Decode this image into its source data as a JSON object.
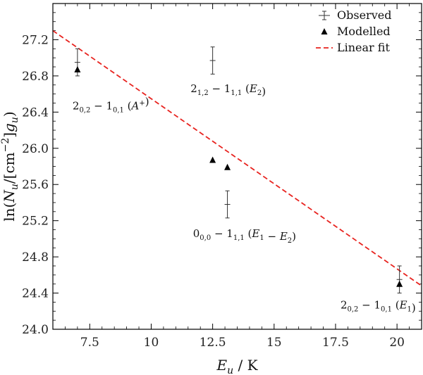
{
  "chart_data": {
    "type": "scatter",
    "xlabel": "E_u / K",
    "ylabel": "ln(N_u/[cm^-2]g_u)",
    "xlim": [
      6,
      21
    ],
    "ylim": [
      24.0,
      27.6
    ],
    "x_ticks": [
      7.5,
      10,
      12.5,
      15,
      17.5,
      20
    ],
    "x_tick_labels": [
      "7.5",
      "10",
      "12.5",
      "15",
      "17.5",
      "20"
    ],
    "y_ticks": [
      24.0,
      24.4,
      24.8,
      25.2,
      25.6,
      26.0,
      26.4,
      26.8,
      27.2
    ],
    "y_tick_labels": [
      "24.0",
      "24.4",
      "24.8",
      "25.2",
      "25.6",
      "26.0",
      "26.4",
      "26.8",
      "27.2"
    ],
    "grid": false,
    "legend_position": "top-right",
    "series": [
      {
        "name": "Observed",
        "style": "errorbar",
        "color": "#333333",
        "points": [
          {
            "x": 7.0,
            "y": 26.95,
            "yerr": 0.15
          },
          {
            "x": 12.5,
            "y": 26.97,
            "yerr": 0.15
          },
          {
            "x": 13.1,
            "y": 25.38,
            "yerr": 0.15
          },
          {
            "x": 20.1,
            "y": 24.55,
            "yerr": 0.15
          }
        ]
      },
      {
        "name": "Modelled",
        "style": "triangle",
        "color": "#000000",
        "points": [
          {
            "x": 7.0,
            "y": 26.87
          },
          {
            "x": 12.5,
            "y": 25.87
          },
          {
            "x": 13.1,
            "y": 25.79
          },
          {
            "x": 20.1,
            "y": 24.5
          }
        ]
      },
      {
        "name": "Linear fit",
        "style": "dashed-line",
        "color": "#e8231f",
        "x": [
          6.0,
          21.0
        ],
        "y": [
          27.3,
          24.48
        ]
      }
    ],
    "annotations": [
      {
        "label": "2_{0,2} − 1_{0,1} (A⁺)",
        "base": "2",
        "base_sub": "0,2",
        "mid": " − 1",
        "mid_sub": "0,1",
        "tail": " (A",
        "tail_sup": "+",
        "tail_sub": "",
        "tail_end": ")",
        "at": [
          6.8,
          26.43
        ]
      },
      {
        "label": "2_{1,2} − 1_{1,1} (E_2)",
        "base": "2",
        "base_sub": "1,2",
        "mid": " − 1",
        "mid_sub": "1,1",
        "tail": " (E",
        "tail_sup": "",
        "tail_sub": "2",
        "tail_end": ")",
        "at": [
          11.6,
          26.62
        ]
      },
      {
        "label": "0_{0,0} − 1_{1,1} (E_1 − E_2)",
        "base": "0",
        "base_sub": "0,0",
        "mid": " − 1",
        "mid_sub": "1,1",
        "tail": " (E",
        "tail_sup": "",
        "tail_sub": "1",
        "tail_end": " − E₂)",
        "at": [
          11.7,
          25.02
        ]
      },
      {
        "label": "2_{0,2} − 1_{0,1} (E_1)",
        "base": "2",
        "base_sub": "0,2",
        "mid": " − 1",
        "mid_sub": "0,1",
        "tail": " (E",
        "tail_sup": "",
        "tail_sub": "1",
        "tail_end": ")",
        "at": [
          17.7,
          24.23
        ]
      }
    ]
  }
}
